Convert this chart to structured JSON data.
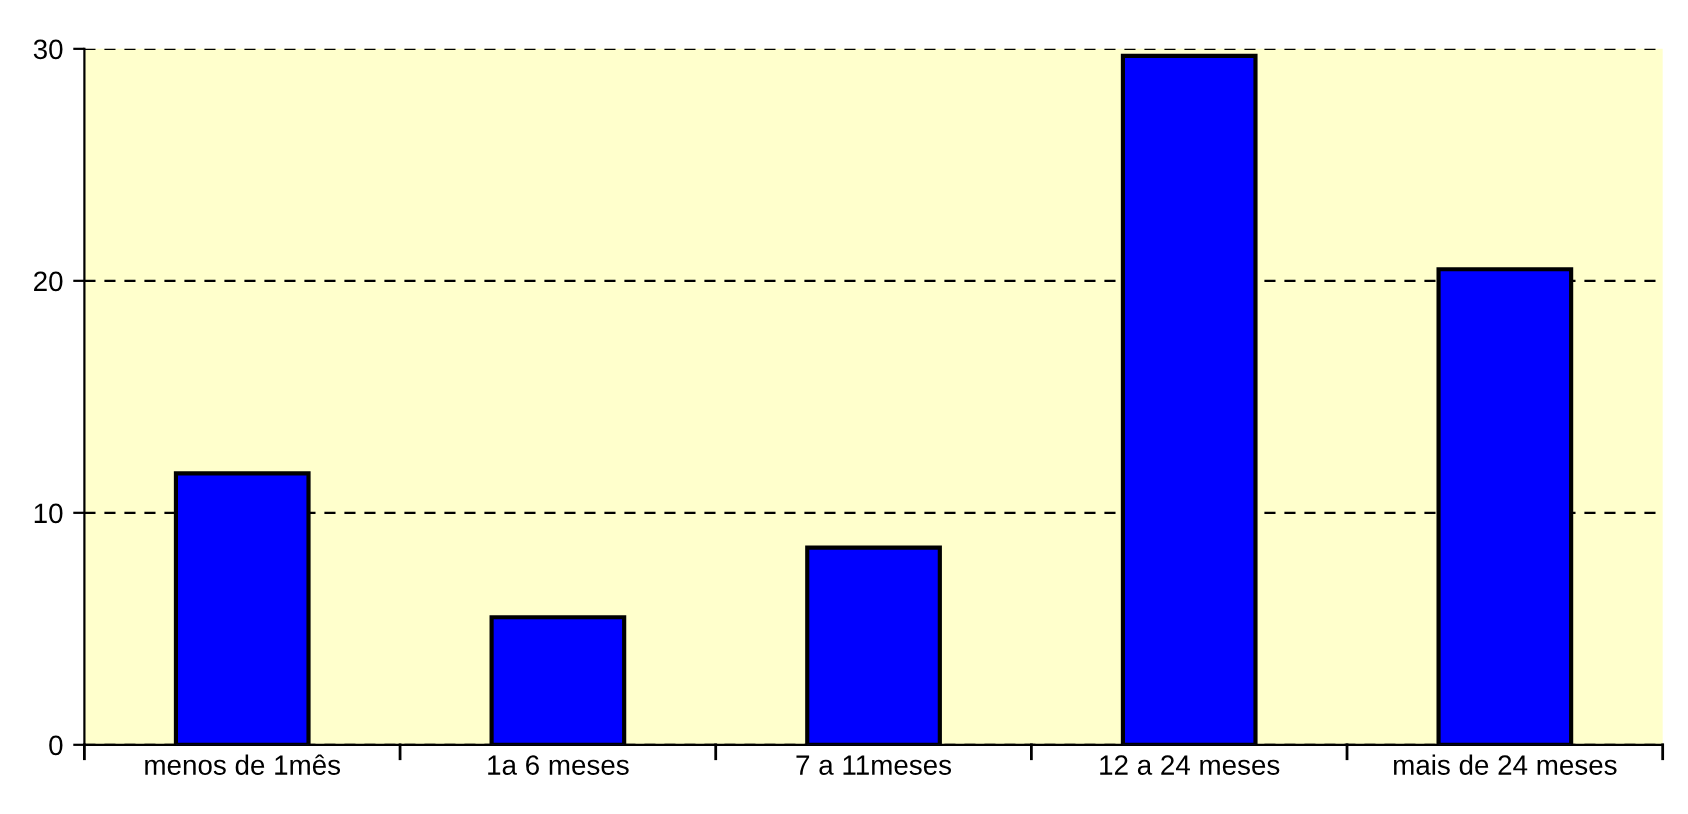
{
  "chart_data": {
    "type": "bar",
    "categories": [
      "menos de 1mês",
      "1a 6 meses",
      "7 a 11meses",
      "12 a 24 meses",
      "mais de 24 meses"
    ],
    "values": [
      11.7,
      5.5,
      8.5,
      29.7,
      20.5
    ],
    "color": "#0000ff",
    "ylim": [
      0,
      30
    ],
    "yticks": [
      0,
      10,
      20,
      30
    ],
    "grid": "y",
    "legend": false
  }
}
